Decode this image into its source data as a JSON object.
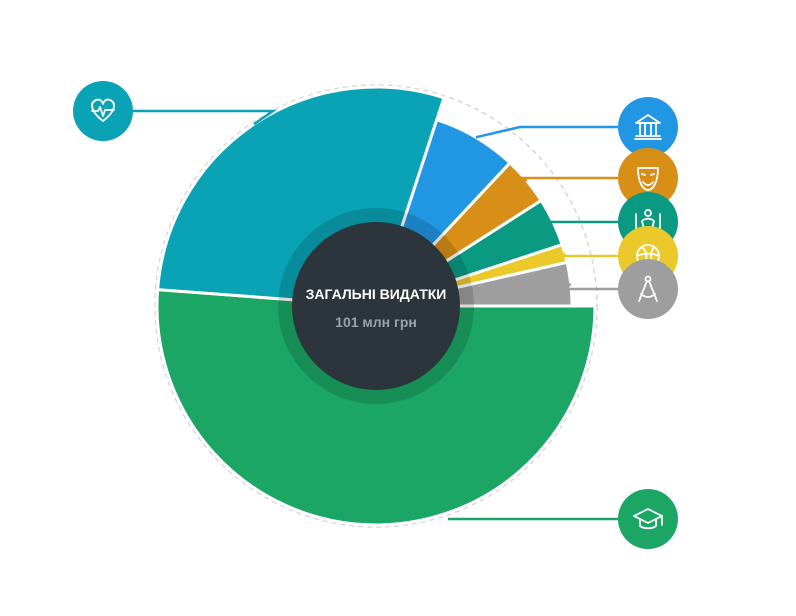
{
  "center": {
    "title": "ЗАГАЛЬНІ ВИДАТКИ",
    "value": "101 млн грн"
  },
  "chart_data": {
    "type": "pie",
    "total": 101,
    "slices": [
      {
        "value": 51.5,
        "color": "#1BA665",
        "icon": "graduation-cap-icon"
      },
      {
        "value": 29.0,
        "color": "#0AA3B6",
        "icon": "heart-pulse-icon"
      },
      {
        "value": 7.0,
        "color": "#2196E3",
        "icon": "museum-building-icon"
      },
      {
        "value": 4.0,
        "color": "#D88F18",
        "icon": "theater-mask-icon"
      },
      {
        "value": 4.0,
        "color": "#0A9A82",
        "icon": "family-care-icon"
      },
      {
        "value": 1.5,
        "color": "#EBC92A",
        "icon": "sports-ball-icon"
      },
      {
        "value": 3.6,
        "color": "#9E9E9E",
        "icon": "compass-drafting-icon"
      }
    ]
  }
}
